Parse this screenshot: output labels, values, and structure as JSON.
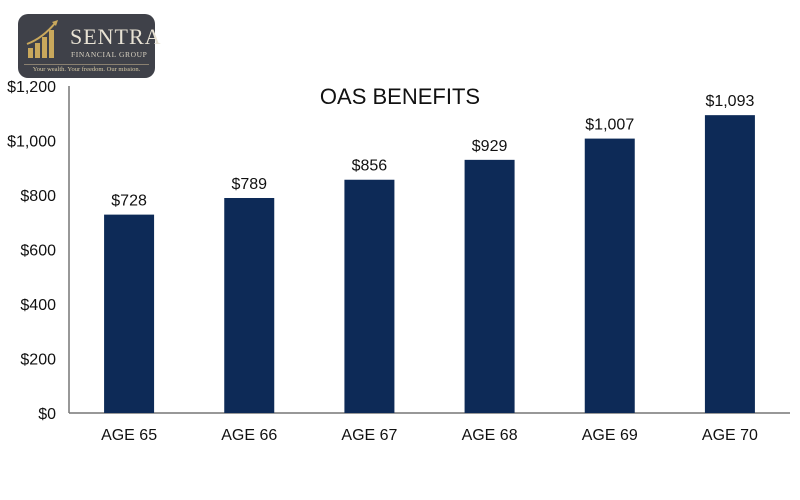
{
  "logo": {
    "brand": "SENTRA",
    "subtitle": "FINANCIAL GROUP",
    "tagline": "Your wealth. Your freedom. Our mission.",
    "colors": {
      "background": "#3f4149",
      "gold": "#c9a85c"
    }
  },
  "chart_data": {
    "type": "bar",
    "title": "OAS BENEFITS",
    "categories": [
      "AGE 65",
      "AGE 66",
      "AGE 67",
      "AGE 68",
      "AGE 69",
      "AGE 70"
    ],
    "values": [
      728,
      789,
      856,
      929,
      1007,
      1093
    ],
    "data_labels": [
      "$728",
      "$789",
      "$856",
      "$929",
      "$1,007",
      "$1,093"
    ],
    "ylim": [
      0,
      1200
    ],
    "yticks": [
      "$0",
      "$200",
      "$400",
      "$600",
      "$800",
      "$1,000",
      "$1,200"
    ],
    "grid": false,
    "bar_color": "#0d2a57"
  }
}
